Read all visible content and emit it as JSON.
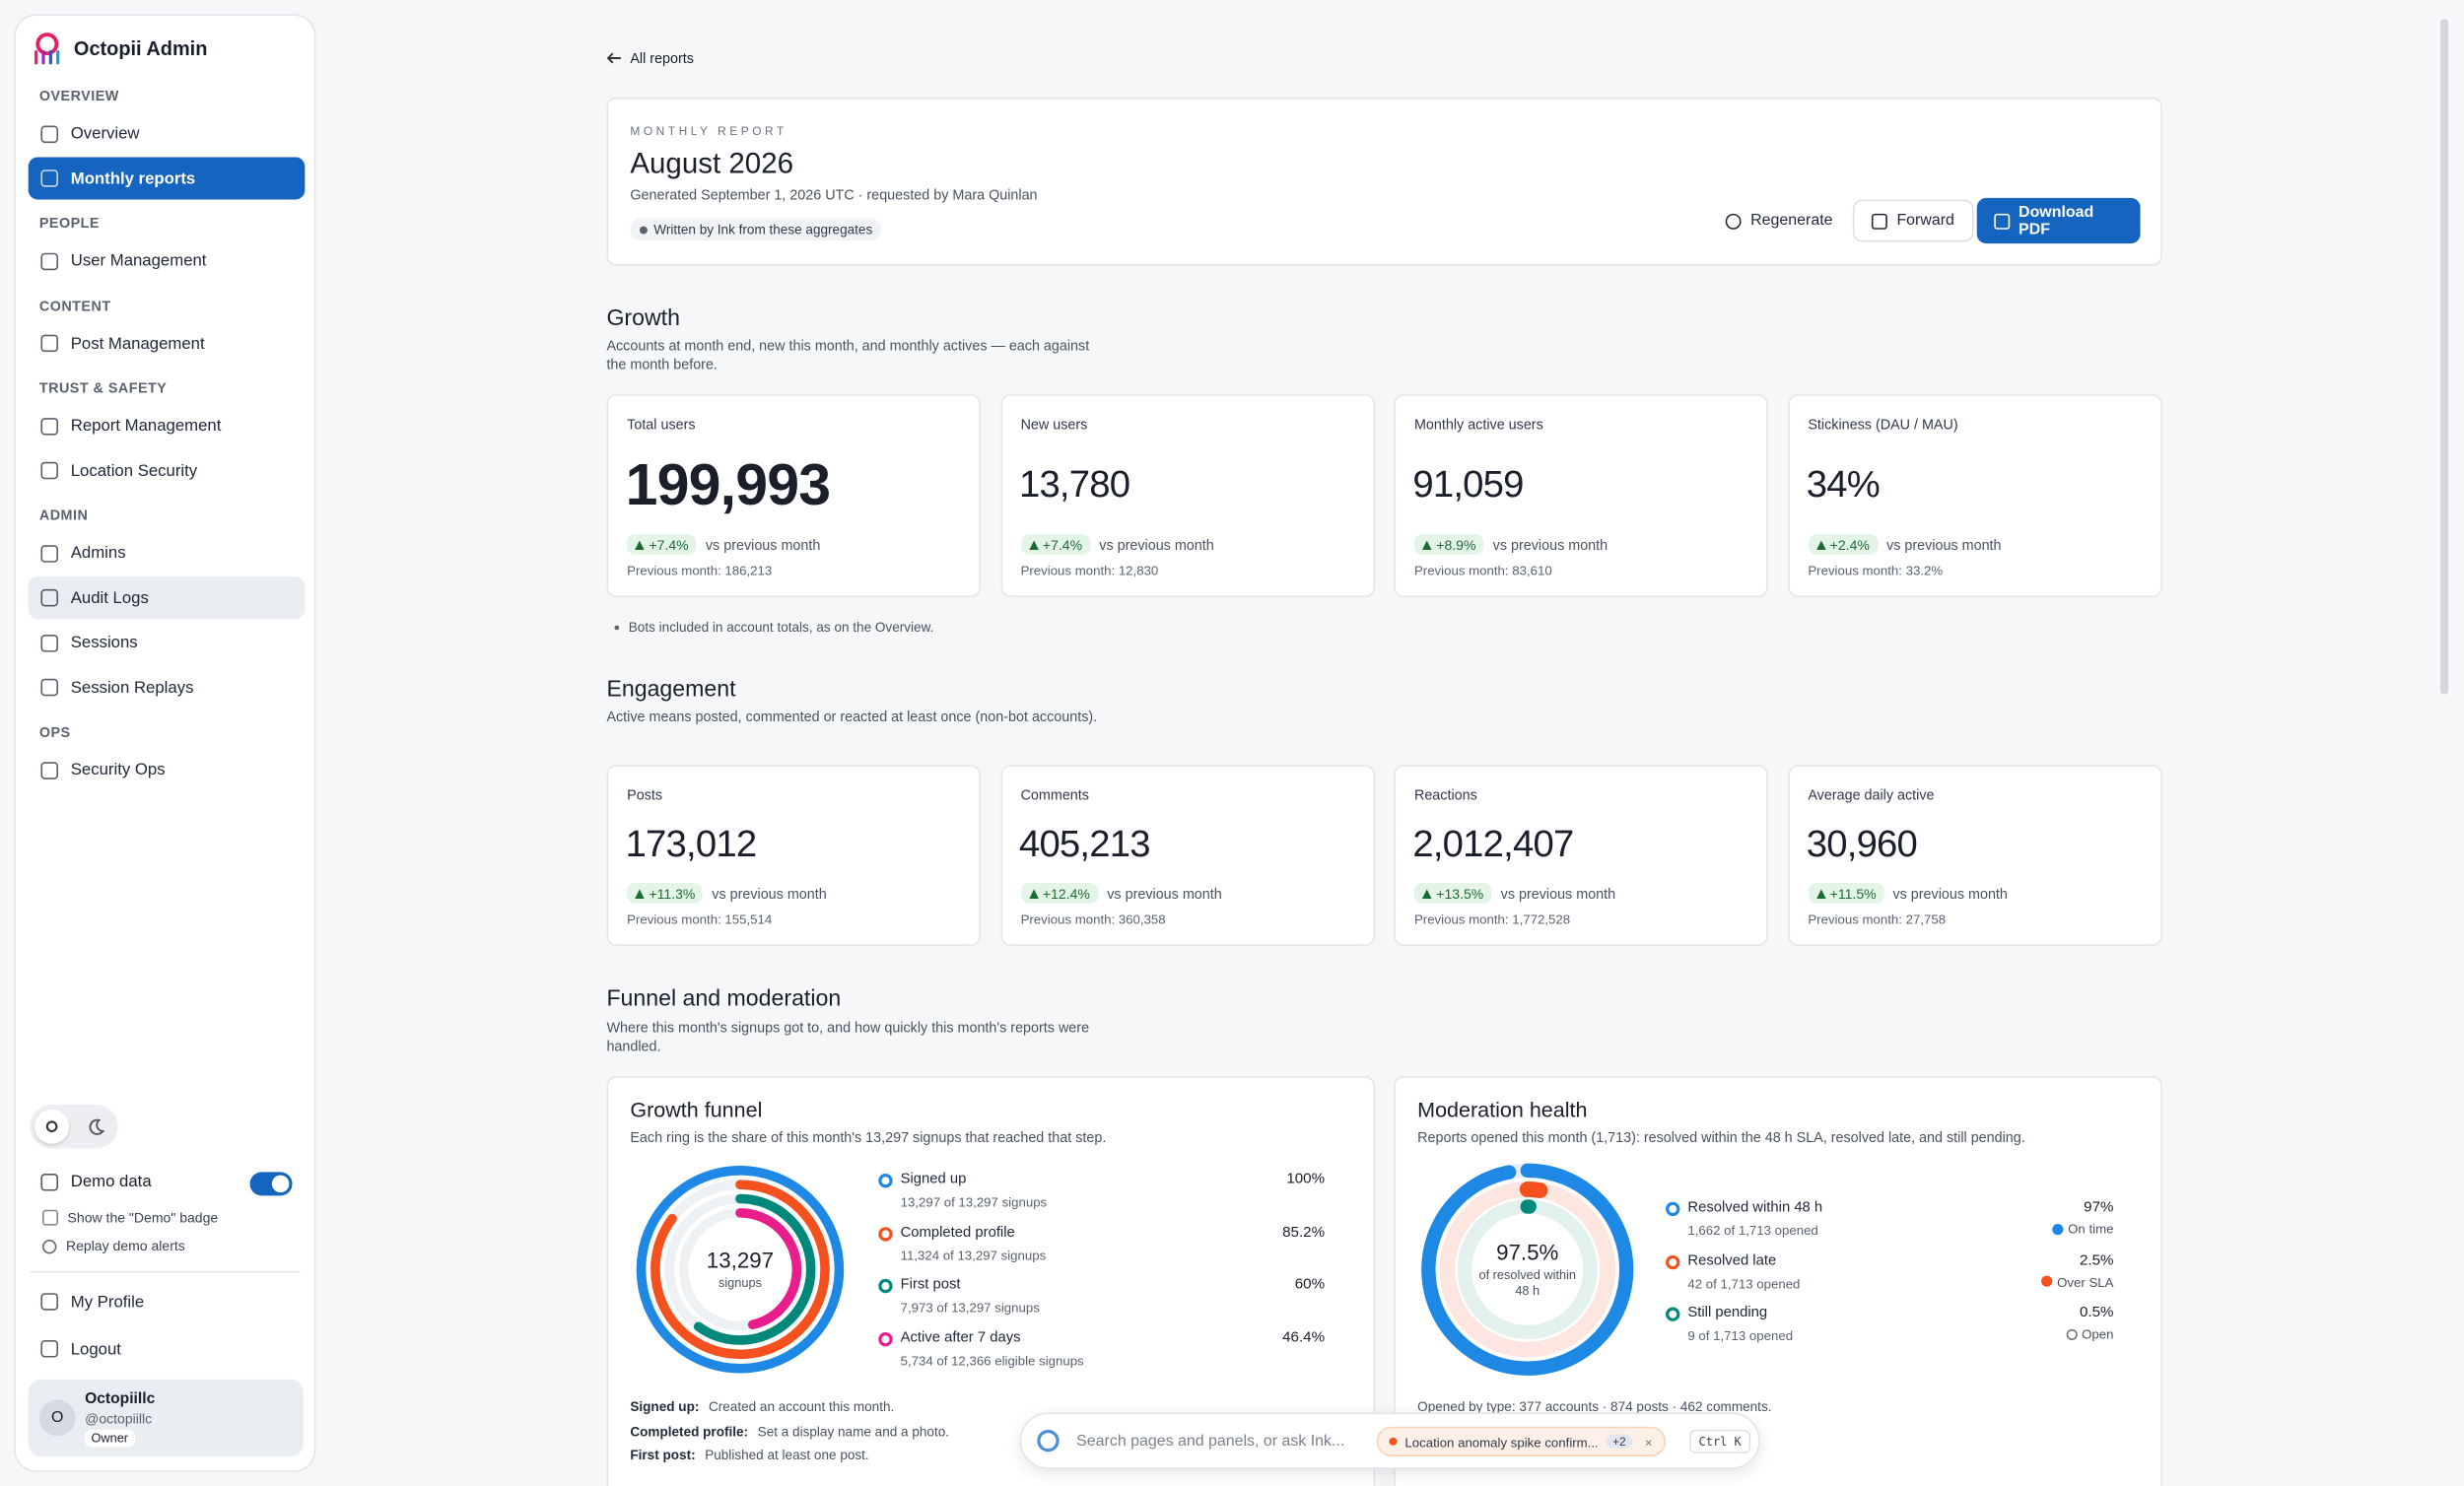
{
  "sidebar": {
    "brand": "Octopii Admin",
    "sections": [
      {
        "title": "OVERVIEW",
        "items": [
          "Overview",
          "Monthly reports"
        ]
      },
      {
        "title": "PEOPLE",
        "items": [
          "User Management"
        ]
      },
      {
        "title": "CONTENT",
        "items": [
          "Post Management"
        ]
      },
      {
        "title": "TRUST & SAFETY",
        "items": [
          "Report Management",
          "Location Security"
        ]
      },
      {
        "title": "ADMIN",
        "items": [
          "Admins",
          "Audit Logs",
          "Sessions",
          "Session Replays"
        ]
      },
      {
        "title": "OPS",
        "items": [
          "Security Ops"
        ]
      }
    ],
    "demo": {
      "label": "Demo data",
      "badge": "Show the \"Demo\" badge",
      "replay": "Replay demo alerts"
    },
    "account": [
      "My Profile",
      "Logout"
    ],
    "user": {
      "avatar": "O",
      "name": "Octopiillc",
      "handle": "@octopiillc",
      "role": "Owner"
    }
  },
  "back": "All reports",
  "header": {
    "kicker": "MONTHLY REPORT",
    "title": "August 2026",
    "meta": "Generated September 1, 2026 UTC · requested by Mara Quinlan",
    "badge": "Written by Ink from these aggregates",
    "buttons": [
      "Regenerate",
      "Forward",
      "Download PDF"
    ]
  },
  "sections": [
    {
      "title": "Growth",
      "desc": "Accounts at month end, new this month, and monthly actives — each against the month before.",
      "cards": [
        {
          "label": "Total users",
          "value": "199,993",
          "delta": "+7.4%",
          "vs": "vs previous month",
          "prev": "Previous month: 186,213"
        },
        {
          "label": "New users",
          "value": "13,780",
          "delta": "+7.4%",
          "vs": "vs previous month",
          "prev": "Previous month: 12,830"
        },
        {
          "label": "Monthly active users",
          "value": "91,059",
          "delta": "+8.9%",
          "vs": "vs previous month",
          "prev": "Previous month: 83,610"
        },
        {
          "label": "Stickiness (DAU / MAU)",
          "value": "34%",
          "delta": "+2.4%",
          "vs": "vs previous month",
          "prev": "Previous month: 33.2%"
        }
      ],
      "note": "Bots included in account totals, as on the Overview."
    },
    {
      "title": "Engagement",
      "desc": "Active means posted, commented or reacted at least once (non-bot accounts).",
      "cards": [
        {
          "label": "Posts",
          "value": "173,012",
          "delta": "+11.3%",
          "vs": "vs previous month",
          "prev": "Previous month: 155,514"
        },
        {
          "label": "Comments",
          "value": "405,213",
          "delta": "+12.4%",
          "vs": "vs previous month",
          "prev": "Previous month: 360,358"
        },
        {
          "label": "Reactions",
          "value": "2,012,407",
          "delta": "+13.5%",
          "vs": "vs previous month",
          "prev": "Previous month: 1,772,528"
        },
        {
          "label": "Average daily active",
          "value": "30,960",
          "delta": "+11.5%",
          "vs": "vs previous month",
          "prev": "Previous month: 27,758"
        }
      ]
    }
  ],
  "funnel_section": {
    "title": "Funnel and moderation",
    "desc": "Where this month's signups got to, and how quickly this month's reports were handled."
  },
  "funnel": {
    "title": "Growth funnel",
    "desc": "Each ring is the share of this month's 13,297 signups that reached that step.",
    "center_value": "13,297",
    "center_label": "signups",
    "steps": [
      {
        "name": "Signed up",
        "detail": "13,297 of 13,297 signups",
        "percent": 100,
        "label": "100%",
        "color": "#1e88e5"
      },
      {
        "name": "Completed profile",
        "detail": "11,324 of 13,297 signups",
        "percent": 85.2,
        "label": "85.2%",
        "color": "#f4511e"
      },
      {
        "name": "First post",
        "detail": "7,973 of 13,297 signups",
        "percent": 60,
        "label": "60%",
        "color": "#00897b"
      },
      {
        "name": "Active after 7 days",
        "detail": "5,734 of 12,366 eligible signups",
        "percent": 46.4,
        "label": "46.4%",
        "color": "#e91e8c"
      }
    ],
    "defs": [
      {
        "term": "Signed up:",
        "text": "Created an account this month."
      },
      {
        "term": "Completed profile:",
        "text": "Set a display name and a photo."
      },
      {
        "term": "First post:",
        "text": "Published at least one post."
      }
    ]
  },
  "moderation": {
    "title": "Moderation health",
    "desc": "Reports opened this month (1,713): resolved within the 48 h SLA, resolved late, and still pending.",
    "center_value": "97.5%",
    "center_label": "of resolved within 48 h",
    "items": [
      {
        "name": "Resolved within 48 h",
        "detail": "1,662 of 1,713 opened",
        "percent": 97,
        "label": "97%",
        "status": "On time",
        "color": "#1e88e5"
      },
      {
        "name": "Resolved late",
        "detail": "42 of 1,713 opened",
        "percent": 2.5,
        "label": "2.5%",
        "status": "Over SLA",
        "color": "#f4511e"
      },
      {
        "name": "Still pending",
        "detail": "9 of 1,713 opened",
        "percent": 0.5,
        "label": "0.5%",
        "status": "Open",
        "color": "#00897b"
      }
    ],
    "footer": "Opened by type: 377 accounts · 874 posts · 462 comments."
  },
  "search": {
    "placeholder": "Search pages and panels, or ask Ink...",
    "alert": "Location anomaly spike confirm...",
    "count": "+2",
    "shortcut": "Ctrl K"
  }
}
